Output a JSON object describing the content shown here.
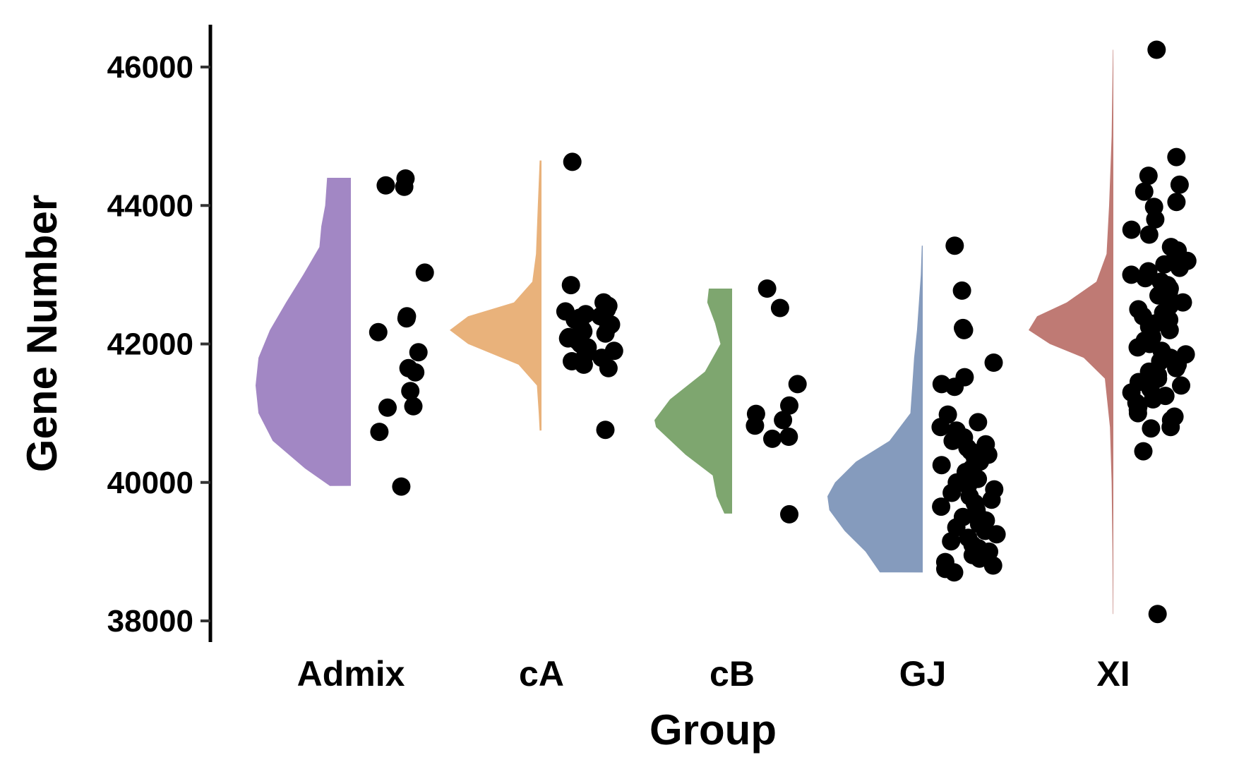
{
  "chart_data": {
    "type": "raincloud",
    "xlabel": "Group",
    "ylabel": "Gene Number",
    "ylim": [
      37700,
      46600
    ],
    "yticks": [
      38000,
      40000,
      42000,
      44000,
      46000
    ],
    "categories": [
      "Admix",
      "cA",
      "cB",
      "GJ",
      "XI"
    ],
    "colors": {
      "Admix": "#a287c4",
      "cA": "#e9b27b",
      "cB": "#7ea66f",
      "GJ": "#859bbd",
      "XI": "#bf7a74"
    },
    "groups": [
      {
        "name": "Admix",
        "range": [
          39950,
          44400
        ],
        "density": [
          [
            39950,
            0.22
          ],
          [
            40200,
            0.48
          ],
          [
            40600,
            0.82
          ],
          [
            41000,
            0.97
          ],
          [
            41400,
            1.0
          ],
          [
            41800,
            0.97
          ],
          [
            42200,
            0.85
          ],
          [
            42600,
            0.68
          ],
          [
            43000,
            0.5
          ],
          [
            43400,
            0.33
          ],
          [
            43700,
            0.31
          ],
          [
            44000,
            0.27
          ],
          [
            44400,
            0.25
          ]
        ],
        "points": [
          44390,
          44290,
          44270,
          43030,
          42400,
          42370,
          42170,
          41880,
          41650,
          41590,
          41320,
          41080,
          41100,
          40730,
          39940
        ]
      },
      {
        "name": "cA",
        "range": [
          40750,
          44650
        ],
        "density": [
          [
            40750,
            0.02
          ],
          [
            41000,
            0.03
          ],
          [
            41400,
            0.05
          ],
          [
            41700,
            0.25
          ],
          [
            42000,
            0.8
          ],
          [
            42200,
            1.0
          ],
          [
            42400,
            0.8
          ],
          [
            42600,
            0.3
          ],
          [
            42900,
            0.1
          ],
          [
            43300,
            0.06
          ],
          [
            44000,
            0.04
          ],
          [
            44650,
            0.02
          ]
        ],
        "points": [
          44630,
          42850,
          42600,
          42550,
          42500,
          42470,
          42430,
          42400,
          42380,
          42350,
          42300,
          42280,
          42250,
          42200,
          42180,
          42150,
          42100,
          42080,
          42050,
          42000,
          41950,
          41900,
          41850,
          41800,
          41750,
          41700,
          41650,
          40760
        ]
      },
      {
        "name": "cB",
        "range": [
          39550,
          42800
        ],
        "density": [
          [
            39550,
            0.1
          ],
          [
            39800,
            0.2
          ],
          [
            40100,
            0.25
          ],
          [
            40400,
            0.6
          ],
          [
            40800,
            0.98
          ],
          [
            40900,
            1.0
          ],
          [
            41200,
            0.8
          ],
          [
            41600,
            0.35
          ],
          [
            42000,
            0.15
          ],
          [
            42300,
            0.22
          ],
          [
            42600,
            0.32
          ],
          [
            42800,
            0.3
          ]
        ],
        "points": [
          42800,
          42520,
          41420,
          41110,
          40990,
          40900,
          40820,
          40660,
          40630,
          39540
        ]
      },
      {
        "name": "GJ",
        "range": [
          38700,
          43420
        ],
        "density": [
          [
            38700,
            0.45
          ],
          [
            39000,
            0.6
          ],
          [
            39300,
            0.82
          ],
          [
            39600,
            0.98
          ],
          [
            39800,
            1.0
          ],
          [
            40000,
            0.92
          ],
          [
            40300,
            0.7
          ],
          [
            40600,
            0.35
          ],
          [
            41000,
            0.13
          ],
          [
            41400,
            0.11
          ],
          [
            41800,
            0.09
          ],
          [
            42200,
            0.06
          ],
          [
            42600,
            0.04
          ],
          [
            43000,
            0.02
          ],
          [
            43420,
            0.01
          ]
        ],
        "points": [
          43420,
          42770,
          42230,
          42200,
          41730,
          41520,
          41420,
          41380,
          40980,
          40870,
          40800,
          40750,
          40700,
          40650,
          40600,
          40550,
          40500,
          40450,
          40400,
          40350,
          40300,
          40250,
          40200,
          40150,
          40100,
          40050,
          40000,
          39950,
          39900,
          39850,
          39800,
          39750,
          39700,
          39650,
          39600,
          39550,
          39500,
          39450,
          39400,
          39350,
          39300,
          39250,
          39200,
          39150,
          39100,
          39050,
          39000,
          38950,
          38900,
          38850,
          38800,
          38750,
          38700
        ]
      },
      {
        "name": "XI",
        "range": [
          38100,
          46250
        ],
        "density": [
          [
            38100,
            0.005
          ],
          [
            39000,
            0.01
          ],
          [
            40000,
            0.02
          ],
          [
            40800,
            0.04
          ],
          [
            41500,
            0.1
          ],
          [
            41800,
            0.35
          ],
          [
            42000,
            0.75
          ],
          [
            42200,
            1.0
          ],
          [
            42400,
            0.9
          ],
          [
            42600,
            0.55
          ],
          [
            42900,
            0.2
          ],
          [
            43300,
            0.08
          ],
          [
            44000,
            0.05
          ],
          [
            45000,
            0.02
          ],
          [
            46250,
            0.005
          ]
        ],
        "points": [
          46250,
          44700,
          44430,
          44300,
          44200,
          44050,
          43980,
          43800,
          43650,
          43580,
          43400,
          43350,
          43270,
          43200,
          43150,
          43100,
          43050,
          43000,
          42950,
          42900,
          42850,
          42800,
          42750,
          42700,
          42650,
          42600,
          42550,
          42500,
          42450,
          42400,
          42350,
          42300,
          42250,
          42200,
          42150,
          42100,
          42050,
          42000,
          41950,
          41900,
          41850,
          41800,
          41750,
          41700,
          41650,
          41600,
          41550,
          41500,
          41450,
          41400,
          41350,
          41300,
          41250,
          41200,
          41150,
          41100,
          41050,
          41000,
          40950,
          40900,
          40800,
          40780,
          40450,
          38100
        ]
      }
    ]
  }
}
